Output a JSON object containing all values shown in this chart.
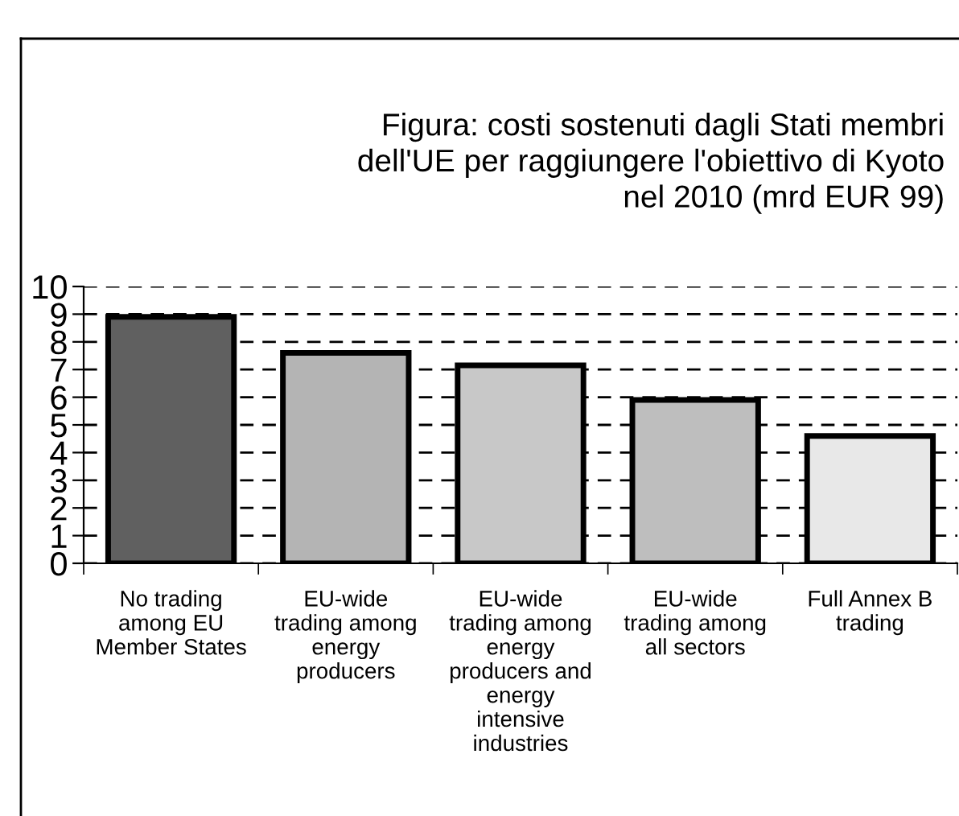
{
  "chart_data": {
    "type": "bar",
    "title": "Figura: costi sostenuti dagli Stati membri\ndell'UE per raggiungere l'obiettivo di Kyoto\nnel 2010 (mrd EUR 99)",
    "categories": [
      "No trading\namong EU\nMember States",
      "EU-wide\ntrading among\nenergy\nproducers",
      "EU-wide\ntrading among\nenergy\nproducers and\nenergy\nintensive\nindustries",
      "EU-wide\ntrading among\nall sectors",
      "Full Annex B\ntrading"
    ],
    "values": [
      8.9,
      7.6,
      7.15,
      5.9,
      4.6
    ],
    "colors": [
      "#606060",
      "#b4b4b4",
      "#c8c8c8",
      "#bebebe",
      "#e8e8e8"
    ],
    "ylim": [
      0,
      10
    ],
    "yticks": [
      0,
      1,
      2,
      3,
      4,
      5,
      6,
      7,
      8,
      9,
      10
    ],
    "grid": "y",
    "legend": false
  }
}
